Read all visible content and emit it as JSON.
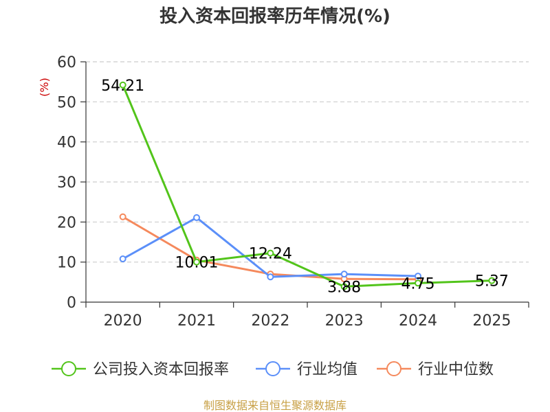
{
  "chart_data": {
    "type": "line",
    "title": "投入资本回报率历年情况(%)",
    "ylabel": "(%)",
    "xlabel": "",
    "ylim": [
      0,
      60
    ],
    "yticks": [
      0,
      10,
      20,
      30,
      40,
      50,
      60
    ],
    "categories": [
      "2020",
      "2021",
      "2022",
      "2023",
      "2024",
      "2025"
    ],
    "series": [
      {
        "name": "公司投入资本回报率",
        "color": "#52c41a",
        "values": [
          54.21,
          10.01,
          12.24,
          3.88,
          4.75,
          5.37
        ],
        "labels": [
          "54.21",
          "10.01",
          "12.24",
          "3.88",
          "4.75",
          "5.37"
        ]
      },
      {
        "name": "行业均值",
        "color": "#5b8ff9",
        "values": [
          10.8,
          21.1,
          6.3,
          7.0,
          6.5,
          null
        ]
      },
      {
        "name": "行业中位数",
        "color": "#f5895c",
        "values": [
          21.3,
          10.5,
          7.0,
          5.8,
          5.7,
          null
        ]
      }
    ],
    "grid": true,
    "legend": "bottom",
    "source": "制图数据来自恒生聚源数据库"
  }
}
